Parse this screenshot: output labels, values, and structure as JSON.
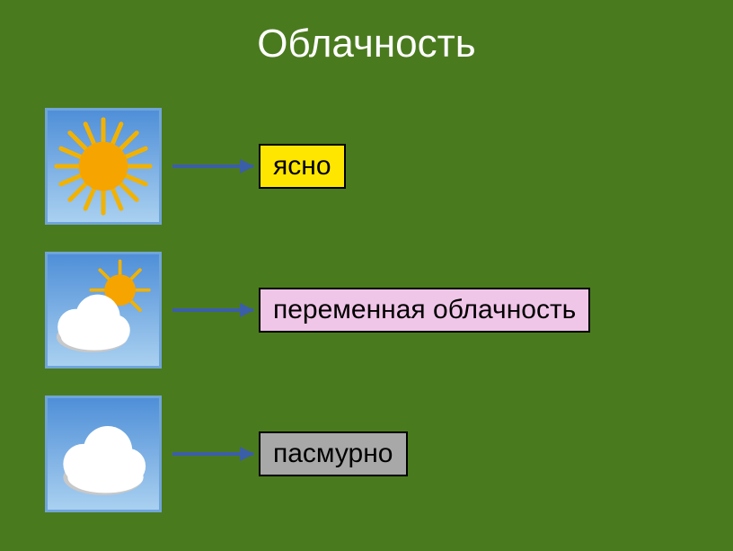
{
  "background_color": "#4a7a1e",
  "title": {
    "text": "Облачность",
    "color": "#ffffff",
    "fontsize": 44
  },
  "icon_box": {
    "border_color": "#6fa5d9",
    "sky_top": "#4f8fd8",
    "sky_bottom": "#a9d0f0"
  },
  "sun": {
    "fill": "#f5a400",
    "ray_color": "#f2b200"
  },
  "cloud": {
    "fill": "#ffffff",
    "shadow": "#c8c8c8"
  },
  "arrow": {
    "color": "#3b5ea8"
  },
  "rows": [
    {
      "label": "ясно",
      "label_bg": "#ffe600",
      "label_text_color": "#000000"
    },
    {
      "label": "переменная облачность",
      "label_bg": "#f0c6e8",
      "label_text_color": "#000000"
    },
    {
      "label": "пасмурно",
      "label_bg": "#a8a8a8",
      "label_text_color": "#000000"
    }
  ]
}
